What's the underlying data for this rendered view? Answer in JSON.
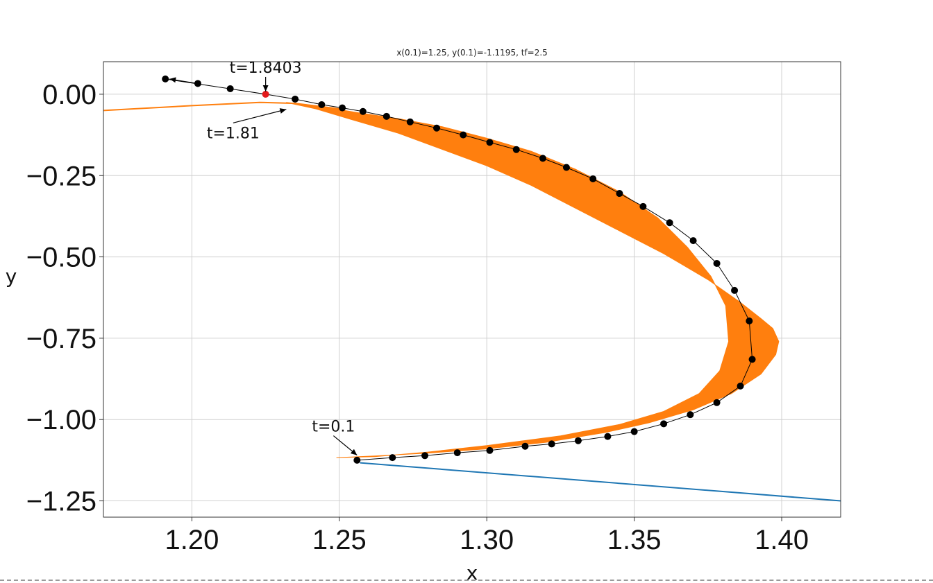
{
  "chart_data": {
    "type": "line",
    "title": "x(0.1)=1.25, y(0.1)=-1.1195, tf=2.5",
    "xlabel": "x",
    "ylabel": "y",
    "xlim": [
      1.17,
      1.42
    ],
    "ylim": [
      -1.3,
      0.1
    ],
    "grid": true,
    "x_ticks": [
      1.2,
      1.25,
      1.3,
      1.35,
      1.4
    ],
    "x_tick_labels": [
      "1.20",
      "1.25",
      "1.30",
      "1.35",
      "1.40"
    ],
    "y_ticks": [
      0.0,
      -0.25,
      -0.5,
      -0.75,
      -1.0,
      -1.25
    ],
    "y_tick_labels": [
      "0.00",
      "−0.25",
      "−0.50",
      "−0.75",
      "−1.00",
      "−1.25"
    ],
    "band": {
      "color": "#ff7f0e",
      "outer": [
        [
          1.249,
          -1.117
        ],
        [
          1.262,
          -1.112
        ],
        [
          1.28,
          -1.103
        ],
        [
          1.3,
          -1.09
        ],
        [
          1.32,
          -1.07
        ],
        [
          1.34,
          -1.04
        ],
        [
          1.355,
          -1.01
        ],
        [
          1.37,
          -0.97
        ],
        [
          1.383,
          -0.92
        ],
        [
          1.393,
          -0.86
        ],
        [
          1.398,
          -0.8
        ],
        [
          1.399,
          -0.76
        ],
        [
          1.397,
          -0.72
        ],
        [
          1.393,
          -0.69
        ],
        [
          1.386,
          -0.64
        ],
        [
          1.375,
          -0.57
        ],
        [
          1.36,
          -0.49
        ],
        [
          1.345,
          -0.42
        ],
        [
          1.33,
          -0.35
        ],
        [
          1.315,
          -0.28
        ],
        [
          1.3,
          -0.22
        ],
        [
          1.285,
          -0.17
        ],
        [
          1.27,
          -0.12
        ],
        [
          1.255,
          -0.08
        ],
        [
          1.242,
          -0.045
        ],
        [
          1.232,
          -0.025
        ]
      ],
      "inner": [
        [
          1.232,
          -0.025
        ],
        [
          1.242,
          -0.035
        ],
        [
          1.255,
          -0.055
        ],
        [
          1.27,
          -0.075
        ],
        [
          1.285,
          -0.1
        ],
        [
          1.3,
          -0.135
        ],
        [
          1.315,
          -0.175
        ],
        [
          1.33,
          -0.23
        ],
        [
          1.345,
          -0.3
        ],
        [
          1.358,
          -0.38
        ],
        [
          1.368,
          -0.47
        ],
        [
          1.376,
          -0.56
        ],
        [
          1.381,
          -0.65
        ],
        [
          1.382,
          -0.76
        ],
        [
          1.379,
          -0.85
        ],
        [
          1.372,
          -0.92
        ],
        [
          1.36,
          -0.975
        ],
        [
          1.345,
          -1.015
        ],
        [
          1.325,
          -1.05
        ],
        [
          1.3,
          -1.08
        ],
        [
          1.28,
          -1.1
        ],
        [
          1.262,
          -1.114
        ],
        [
          1.249,
          -1.117
        ]
      ]
    },
    "series": [
      {
        "role": "line",
        "color": "#1f77b4",
        "x": [
          1.257,
          1.42
        ],
        "y": [
          -1.133,
          -1.25
        ]
      },
      {
        "role": "line",
        "color": "#ff7f0e",
        "x": [
          1.17,
          1.2,
          1.223,
          1.235,
          1.25
        ],
        "y": [
          -0.05,
          -0.035,
          -0.025,
          -0.028,
          -0.045
        ]
      },
      {
        "role": "markers",
        "color": "#000000",
        "x": [
          1.191,
          1.202,
          1.213,
          1.235,
          1.244,
          1.251,
          1.258,
          1.266,
          1.274,
          1.283,
          1.292,
          1.301,
          1.31,
          1.319,
          1.327,
          1.336,
          1.345,
          1.353,
          1.362,
          1.37,
          1.378,
          1.384,
          1.389,
          1.39,
          1.386,
          1.378,
          1.369,
          1.36,
          1.35,
          1.341,
          1.331,
          1.322,
          1.313,
          1.301,
          1.29,
          1.279,
          1.268,
          1.256
        ],
        "y": [
          0.047,
          0.033,
          0.017,
          -0.015,
          -0.032,
          -0.042,
          -0.053,
          -0.068,
          -0.085,
          -0.104,
          -0.125,
          -0.148,
          -0.17,
          -0.197,
          -0.225,
          -0.26,
          -0.305,
          -0.345,
          -0.395,
          -0.45,
          -0.52,
          -0.603,
          -0.697,
          -0.815,
          -0.897,
          -0.948,
          -0.985,
          -1.013,
          -1.037,
          -1.052,
          -1.065,
          -1.075,
          -1.082,
          -1.095,
          -1.102,
          -1.111,
          -1.117,
          -1.125
        ]
      }
    ],
    "trajectory_extension": {
      "x": [
        1.235,
        1.225,
        1.191
      ],
      "y": [
        -0.015,
        0.0,
        0.047
      ]
    },
    "highlight_point": {
      "x": 1.225,
      "y": 0.0,
      "color": "#e31a1c"
    },
    "annotations": [
      {
        "text": "t=1.8403",
        "x": 1.225,
        "y": 0.0,
        "text_x": 1.225,
        "text_y": 0.066
      },
      {
        "text": "t=1.81",
        "x": 1.232,
        "y": -0.038,
        "text_x": 1.214,
        "text_y": -0.135
      },
      {
        "text": "t=0.1",
        "x": 1.256,
        "y": -1.118,
        "text_x": 1.248,
        "text_y": -1.037
      }
    ]
  }
}
